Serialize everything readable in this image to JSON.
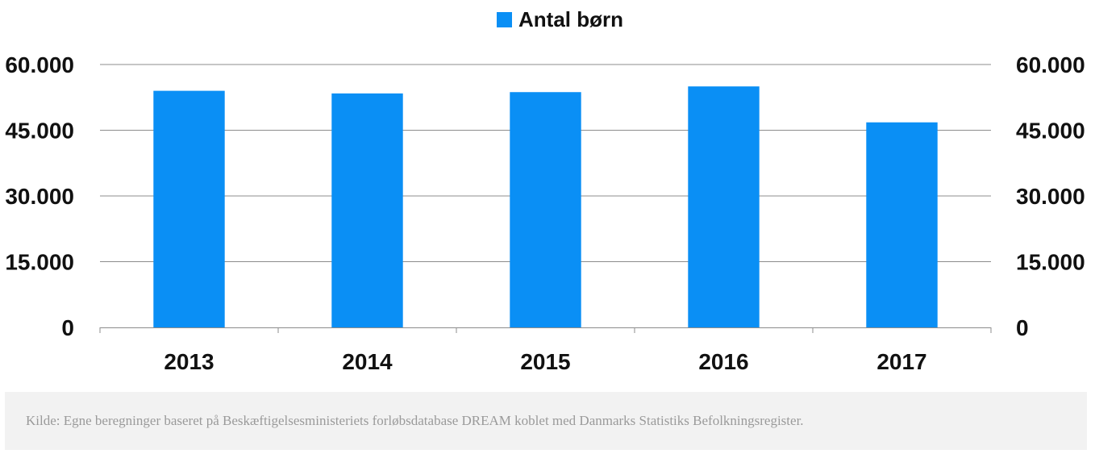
{
  "chart_data": {
    "type": "bar",
    "categories": [
      "2013",
      "2014",
      "2015",
      "2016",
      "2017"
    ],
    "series": [
      {
        "name": "Antal børn",
        "values": [
          54000,
          53400,
          53700,
          55000,
          46800
        ],
        "color": "#0a8ff5"
      }
    ],
    "ylim": [
      0,
      60000
    ],
    "yticks": [
      {
        "value": 0,
        "label": "0"
      },
      {
        "value": 15000,
        "label": "15.000"
      },
      {
        "value": 30000,
        "label": "30.000"
      },
      {
        "value": 45000,
        "label": "45.000"
      },
      {
        "value": 60000,
        "label": "60.000"
      }
    ],
    "grid": true,
    "legend_position": "top-center",
    "secondary_y_axis": "mirrored-right"
  },
  "source_note": "Kilde: Egne beregninger baseret på Beskæftigelsesministeriets forløbsdatabase DREAM koblet med Danmarks Statistiks Befolkningsregister."
}
